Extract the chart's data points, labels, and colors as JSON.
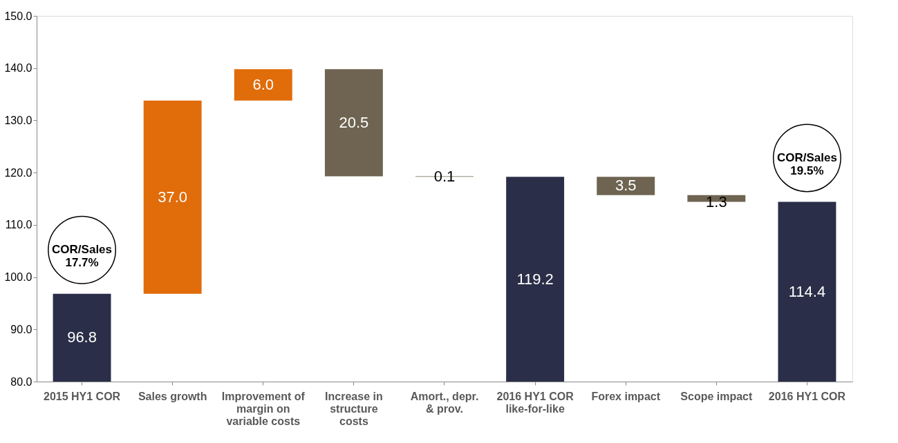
{
  "chart_data": {
    "type": "bar",
    "categories": [
      "2015 HY1 COR",
      "Sales growth",
      "Improvement of margin on variable costs",
      "Increase in structure costs",
      "Amort., depr. & prov.",
      "2016 HY1 COR like-for-like",
      "Forex impact",
      "Scope impact",
      "2016 HY1 COR"
    ],
    "values": [
      96.8,
      37.0,
      6.0,
      20.5,
      0.1,
      119.2,
      3.5,
      1.3,
      114.4
    ],
    "base": [
      null,
      96.8,
      133.8,
      119.3,
      119.2,
      null,
      115.7,
      114.4,
      null
    ],
    "colors": [
      "#2b2e48",
      "#e06c0a",
      "#e06c0a",
      "#6e6451",
      "#6e6451",
      "#2b2e48",
      "#6e6451",
      "#6e6451",
      "#2b2e48"
    ],
    "value_labels": [
      "96.8",
      "37.0",
      "6.0",
      "20.5",
      "0.1",
      "119.2",
      "3.5",
      "1.3",
      "114.4"
    ],
    "ylim": [
      80,
      150
    ],
    "yticks": [
      {
        "value": 80,
        "label": "80.0"
      },
      {
        "value": 90,
        "label": "90.0"
      },
      {
        "value": 100,
        "label": "100.0"
      },
      {
        "value": 110,
        "label": "110.0"
      },
      {
        "value": 120,
        "label": "120.0"
      },
      {
        "value": 130,
        "label": "130.0"
      },
      {
        "value": 140,
        "label": "140.0"
      },
      {
        "value": 150,
        "label": "150.0"
      }
    ],
    "grid": false,
    "annotations": [
      "COR/Sales 17.7%",
      "COR/Sales 19.5%"
    ]
  }
}
